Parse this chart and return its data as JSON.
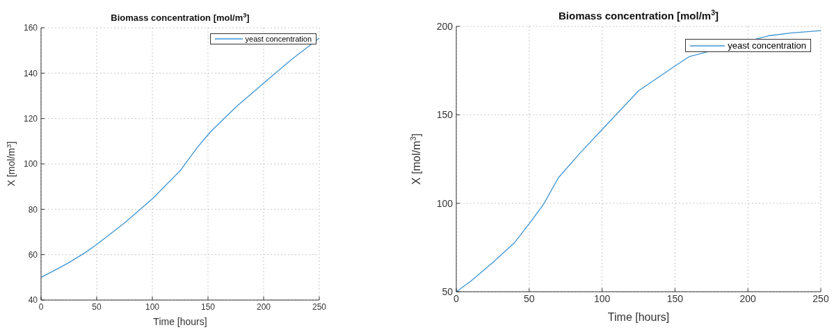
{
  "chart_data": [
    {
      "type": "line",
      "title": "Biomass concentration [mol/m$^{3}$]",
      "xlabel": "Time [hours]",
      "ylabel": "X [mol/m$^{3}$]",
      "x": [
        0,
        10,
        25,
        40,
        50,
        75,
        100,
        125,
        140,
        152,
        175,
        200,
        225,
        250
      ],
      "series": [
        {
          "name": "yeast concentration",
          "color": "#3c94d4",
          "values": [
            50,
            52.5,
            56.5,
            61,
            64.5,
            74,
            84.6,
            97,
            107,
            114,
            125,
            135.6,
            146,
            155.4
          ]
        }
      ],
      "xlim": [
        0,
        250
      ],
      "xticks": [
        0,
        50,
        100,
        150,
        200,
        250
      ],
      "ylim": [
        40,
        160
      ],
      "yticks": [
        40,
        60,
        80,
        100,
        120,
        140,
        160
      ],
      "grid": true,
      "legend": "top right",
      "marker": "none",
      "line_style": "solid"
    },
    {
      "type": "line",
      "title": "Biomass concentration [mol/m$^{3}$]",
      "xlabel": "Time [hours]",
      "ylabel": "X [mol/m$^{3}$]",
      "x": [
        0,
        10,
        25,
        40,
        50,
        60,
        70,
        85,
        100,
        125,
        150,
        160,
        215,
        230,
        250
      ],
      "series": [
        {
          "name": "yeast concentration",
          "color": "#3c94d4",
          "values": [
            50,
            56,
            66.5,
            77.8,
            88.4,
            99.6,
            114.4,
            128.5,
            141.7,
            163.6,
            177.6,
            183,
            194.8,
            196.3,
            197.6
          ]
        }
      ],
      "xlim": [
        0,
        250
      ],
      "xticks": [
        0,
        50,
        100,
        150,
        200,
        250
      ],
      "ylim": [
        50,
        200
      ],
      "yticks": [
        50,
        100,
        150,
        200
      ],
      "grid": true,
      "legend": "top right",
      "marker": "none",
      "line_style": "solid"
    }
  ]
}
